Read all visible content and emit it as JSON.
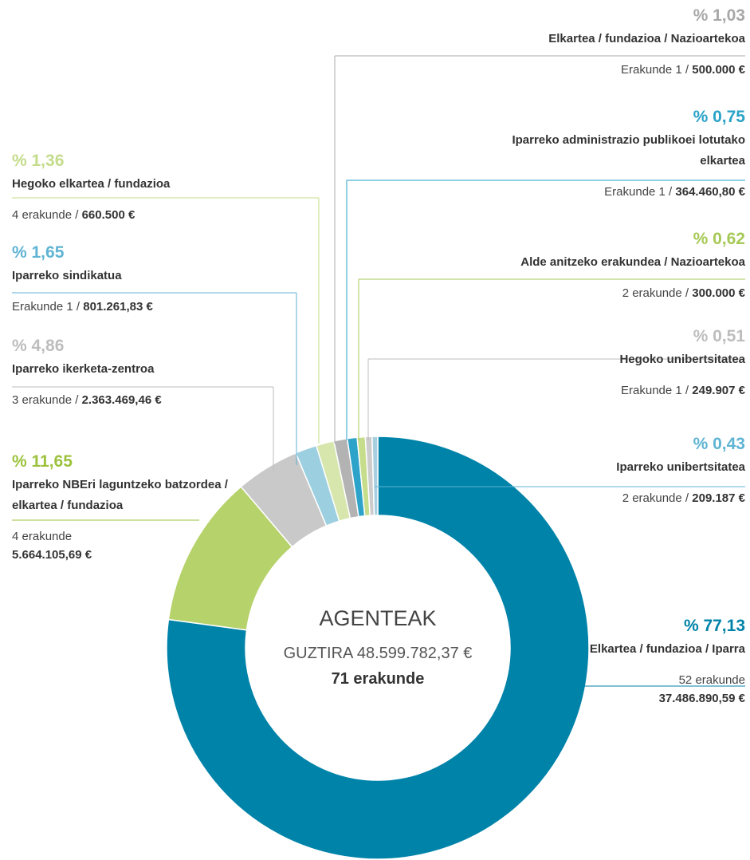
{
  "chart_data": {
    "type": "donut",
    "center_title": "AGENTEAK",
    "center_total": "GUZTIRA 48.599.782,37 €",
    "center_count": "71 erakunde",
    "categories": [
      "Elkartea / fundazioa / Iparra",
      "Iparreko NBEri laguntzeko batzordea / elkartea / fundazioa",
      "Iparreko ikerketa-zentroa",
      "Iparreko sindikatua",
      "Hegoko elkartea / fundazioa",
      "Elkartea / fundazioa / Nazioartekoa",
      "Iparreko administrazio publikoei lotutako elkartea",
      "Alde anitzeko erakundea / Nazioartekoa",
      "Hegoko unibertsitatea",
      "Iparreko unibertsitatea"
    ],
    "values": [
      77.13,
      11.65,
      4.86,
      1.65,
      1.36,
      1.03,
      0.75,
      0.62,
      0.51,
      0.43
    ],
    "value_labels": [
      "% 77,13",
      "% 11,65",
      "% 4,86",
      "% 1,65",
      "% 1,36",
      "% 1,03",
      "% 0,75",
      "% 0,62",
      "% 0,51",
      "% 0,43"
    ],
    "counts": [
      "52 erakunde",
      "4 erakunde",
      "3 erakunde /",
      "Erakunde 1 /",
      "4 erakunde /",
      "Erakunde 1 /",
      "Erakunde 1 /",
      "2 erakunde /",
      "Erakunde 1 /",
      "2 erakunde /"
    ],
    "amounts": [
      "37.486.890,59 €",
      "5.664.105,69 €",
      "2.363.469,46 €",
      "801.261,83 €",
      "660.500 €",
      "500.000 €",
      "364.460,80 €",
      "300.000 €",
      "249.907 €",
      "209.187 €"
    ],
    "colors": [
      "#0083a9",
      "#b6d26b",
      "#c9c9c9",
      "#9ccfe0",
      "#d6e6ad",
      "#b3b3b3",
      "#2ea3c9",
      "#c6dd8c",
      "#cccccc",
      "#a8cfe0"
    ],
    "label_colors": [
      "#0083a9",
      "#9cc23c",
      "#bdbdbd",
      "#5fb3d3",
      "#c4dc8a",
      "#a8a8a8",
      "#2aa2c8",
      "#a6c955",
      "#bdbdbd",
      "#5fb3d3"
    ]
  }
}
